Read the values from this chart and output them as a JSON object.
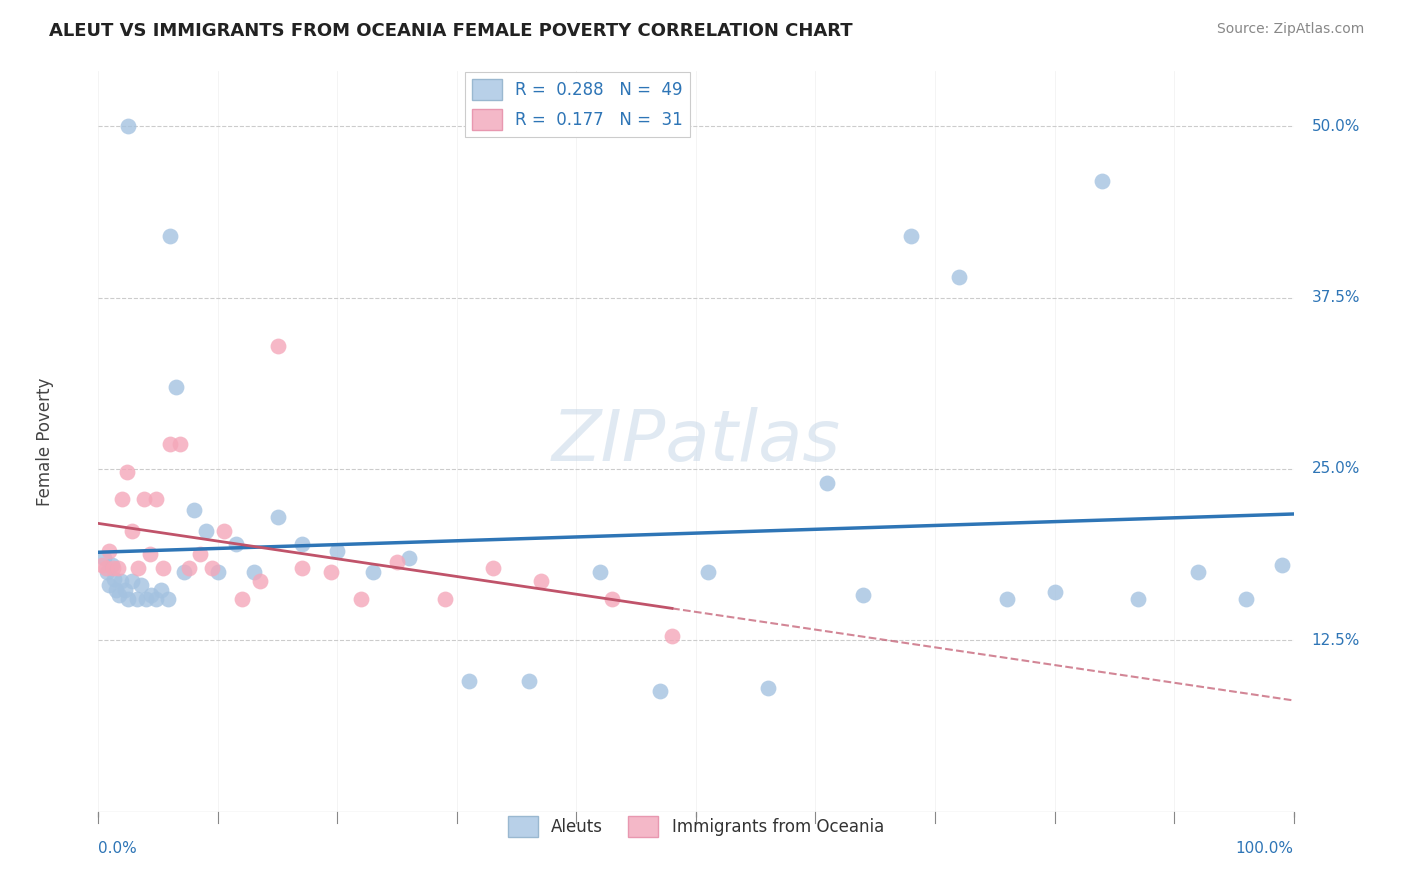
{
  "title": "ALEUT VS IMMIGRANTS FROM OCEANIA FEMALE POVERTY CORRELATION CHART",
  "source": "Source: ZipAtlas.com",
  "ylabel": "Female Poverty",
  "ytick_labels": {
    "0.125": "12.5%",
    "0.25": "25.0%",
    "0.375": "37.5%",
    "0.50": "50.0%"
  },
  "xlim": [
    0.0,
    1.0
  ],
  "ylim": [
    0.0,
    0.54
  ],
  "blue_color": "#a4c2e0",
  "pink_color": "#f4a7b9",
  "blue_line_color": "#2e75b6",
  "pink_line_color": "#c0536a",
  "watermark": "ZIPatlas",
  "aleuts_x": [
    0.025,
    0.06,
    0.005,
    0.007,
    0.009,
    0.011,
    0.013,
    0.015,
    0.017,
    0.019,
    0.022,
    0.025,
    0.028,
    0.032,
    0.036,
    0.04,
    0.044,
    0.048,
    0.052,
    0.058,
    0.065,
    0.072,
    0.08,
    0.09,
    0.1,
    0.115,
    0.13,
    0.15,
    0.17,
    0.2,
    0.23,
    0.26,
    0.31,
    0.36,
    0.42,
    0.47,
    0.51,
    0.56,
    0.61,
    0.64,
    0.68,
    0.72,
    0.76,
    0.8,
    0.84,
    0.87,
    0.92,
    0.96,
    0.99
  ],
  "aleuts_y": [
    0.5,
    0.42,
    0.185,
    0.175,
    0.165,
    0.18,
    0.17,
    0.162,
    0.158,
    0.168,
    0.162,
    0.155,
    0.168,
    0.155,
    0.165,
    0.155,
    0.158,
    0.155,
    0.162,
    0.155,
    0.31,
    0.175,
    0.22,
    0.205,
    0.175,
    0.195,
    0.175,
    0.215,
    0.195,
    0.19,
    0.175,
    0.185,
    0.095,
    0.095,
    0.175,
    0.088,
    0.175,
    0.09,
    0.24,
    0.158,
    0.42,
    0.39,
    0.155,
    0.16,
    0.46,
    0.155,
    0.175,
    0.155,
    0.18
  ],
  "oceania_x": [
    0.003,
    0.006,
    0.009,
    0.012,
    0.016,
    0.02,
    0.024,
    0.028,
    0.033,
    0.038,
    0.043,
    0.048,
    0.054,
    0.06,
    0.068,
    0.076,
    0.085,
    0.095,
    0.105,
    0.12,
    0.135,
    0.15,
    0.17,
    0.195,
    0.22,
    0.25,
    0.29,
    0.33,
    0.37,
    0.43,
    0.48
  ],
  "oceania_y": [
    0.18,
    0.178,
    0.19,
    0.178,
    0.178,
    0.228,
    0.248,
    0.205,
    0.178,
    0.228,
    0.188,
    0.228,
    0.178,
    0.268,
    0.268,
    0.178,
    0.188,
    0.178,
    0.205,
    0.155,
    0.168,
    0.34,
    0.178,
    0.175,
    0.155,
    0.182,
    0.155,
    0.178,
    0.168,
    0.155,
    0.128
  ]
}
